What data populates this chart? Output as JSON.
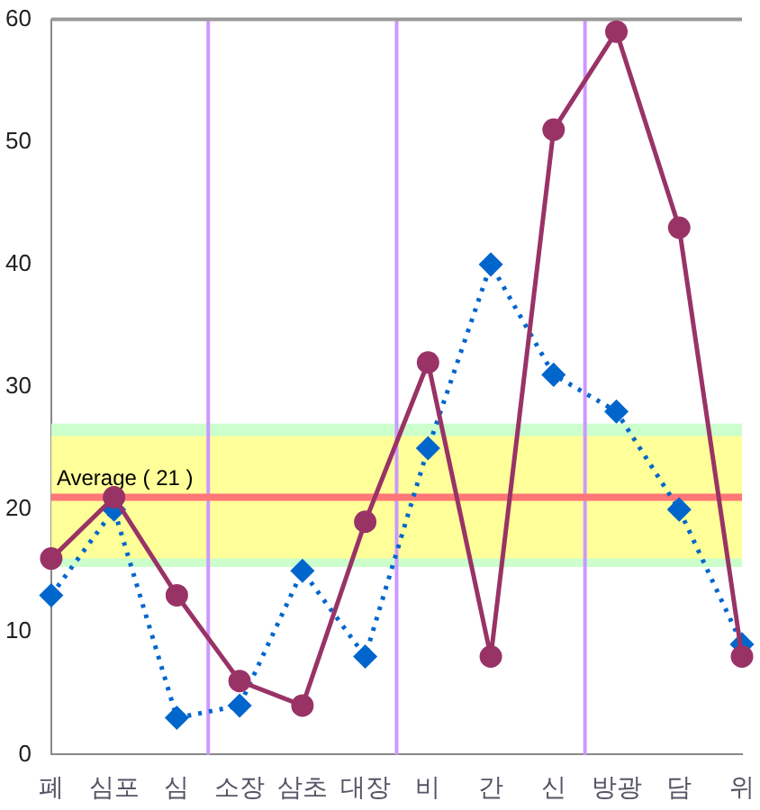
{
  "chart_data": {
    "type": "line",
    "categories": [
      "폐",
      "심포",
      "심",
      "소장",
      "삼초",
      "대장",
      "비",
      "간",
      "신",
      "방광",
      "담",
      "위"
    ],
    "series": [
      {
        "color": "#993366",
        "values": [
          16,
          21,
          13,
          6,
          4,
          19,
          32,
          8,
          51,
          59,
          43,
          8
        ],
        "marker": "circle",
        "line_style": "solid"
      },
      {
        "color": "#0066cc",
        "values": [
          13,
          20,
          3,
          4,
          15,
          8,
          25,
          40,
          31,
          28,
          20,
          9
        ],
        "marker": "diamond",
        "line_style": "dotted"
      }
    ],
    "ylim": [
      0,
      60
    ],
    "yticks": [
      0,
      10,
      20,
      30,
      40,
      50,
      60
    ],
    "grid": false,
    "legend": false,
    "bands": [
      {
        "axis": "y",
        "from": 15.3,
        "to": 27,
        "color": "#ccffcc"
      },
      {
        "axis": "y",
        "from": 16,
        "to": 26,
        "color": "#ffff99"
      }
    ],
    "ref_lines": [
      {
        "axis": "y",
        "value": 21,
        "label": "Average ( 21 )",
        "color": "#ff7777"
      }
    ]
  }
}
